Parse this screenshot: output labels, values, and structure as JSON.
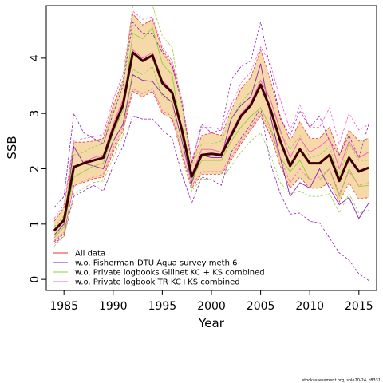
{
  "chart_data": {
    "type": "line",
    "xlabel": "Year",
    "ylabel": "SSB",
    "xlim": [
      1983.2,
      2016.8
    ],
    "ylim": [
      -0.2,
      4.95
    ],
    "x_ticks": [
      1985,
      1990,
      1995,
      2000,
      2005,
      2010,
      2015
    ],
    "y_ticks": [
      0,
      1,
      2,
      3,
      4
    ],
    "legend_position": "bottom-left",
    "x": [
      1984,
      1985,
      1986,
      1987,
      1988,
      1989,
      1990,
      1991,
      1992,
      1993,
      1994,
      1995,
      1996,
      1997,
      1998,
      1999,
      2000,
      2001,
      2002,
      2003,
      2004,
      2005,
      2006,
      2007,
      2008,
      2009,
      2010,
      2011,
      2012,
      2013,
      2014,
      2015,
      2016
    ],
    "main_estimate": {
      "values": [
        0.88,
        1.07,
        2.03,
        2.1,
        2.15,
        2.2,
        2.72,
        3.15,
        4.1,
        3.95,
        4.05,
        3.55,
        3.38,
        2.7,
        1.86,
        2.25,
        2.27,
        2.25,
        2.6,
        2.95,
        3.15,
        3.52,
        3.08,
        2.5,
        2.05,
        2.35,
        2.1,
        2.1,
        2.25,
        1.78,
        2.2,
        1.95,
        2.02
      ],
      "color": "#3d0000"
    },
    "confidence_band": {
      "lower": [
        0.68,
        0.82,
        1.7,
        1.75,
        1.82,
        1.85,
        2.3,
        2.68,
        3.4,
        3.3,
        3.4,
        3.0,
        2.9,
        2.25,
        1.65,
        1.9,
        1.9,
        1.9,
        2.15,
        2.45,
        2.7,
        2.95,
        2.6,
        2.05,
        1.65,
        1.85,
        1.65,
        1.65,
        1.75,
        1.4,
        1.75,
        1.45,
        1.48
      ],
      "upper": [
        1.05,
        1.3,
        2.48,
        2.48,
        2.5,
        2.55,
        3.15,
        3.6,
        4.8,
        4.6,
        4.7,
        4.15,
        3.9,
        3.2,
        2.1,
        2.6,
        2.65,
        2.6,
        3.05,
        3.45,
        3.65,
        4.15,
        3.6,
        2.95,
        2.5,
        2.85,
        2.55,
        2.55,
        2.75,
        2.25,
        2.7,
        2.5,
        2.55
      ],
      "fill_color": "#f5d9a8",
      "line_color": "#e0525b"
    },
    "series": [
      {
        "name": "All data",
        "color": "#e8323c",
        "values": [
          0.88,
          1.07,
          2.03,
          2.1,
          2.15,
          2.2,
          2.72,
          3.15,
          4.1,
          3.95,
          4.05,
          3.55,
          3.38,
          2.7,
          1.86,
          2.25,
          2.27,
          2.25,
          2.6,
          2.95,
          3.15,
          3.52,
          3.08,
          2.5,
          2.05,
          2.35,
          2.1,
          2.1,
          2.25,
          1.78,
          2.2,
          1.95,
          2.02
        ],
        "lower": [
          0.68,
          0.82,
          1.7,
          1.75,
          1.82,
          1.85,
          2.3,
          2.68,
          3.4,
          3.3,
          3.4,
          3.0,
          2.9,
          2.25,
          1.65,
          1.9,
          1.9,
          1.9,
          2.15,
          2.45,
          2.7,
          2.95,
          2.6,
          2.05,
          1.65,
          1.85,
          1.65,
          1.65,
          1.75,
          1.4,
          1.75,
          1.45,
          1.48
        ],
        "upper": [
          1.05,
          1.3,
          2.48,
          2.48,
          2.5,
          2.55,
          3.15,
          3.6,
          4.8,
          4.6,
          4.7,
          4.15,
          3.9,
          3.2,
          2.1,
          2.6,
          2.65,
          2.6,
          3.05,
          3.45,
          3.65,
          4.15,
          3.6,
          2.95,
          2.5,
          2.85,
          2.55,
          2.55,
          2.75,
          2.25,
          2.7,
          2.5,
          2.55
        ]
      },
      {
        "name": "w.o. Fisherman-DTU Aqua survey meth 6",
        "color": "#8a1fb5",
        "values": [
          0.8,
          1.0,
          2.4,
          2.1,
          2.05,
          2.0,
          2.5,
          2.8,
          3.7,
          3.6,
          3.58,
          3.35,
          3.2,
          2.5,
          1.75,
          2.25,
          2.2,
          2.2,
          2.9,
          3.15,
          3.3,
          3.9,
          2.95,
          2.2,
          1.5,
          1.75,
          1.65,
          2.0,
          1.65,
          1.35,
          1.48,
          1.1,
          1.38
        ],
        "lower": [
          0.65,
          0.78,
          1.5,
          1.6,
          1.7,
          1.6,
          2.05,
          2.4,
          2.95,
          2.9,
          2.9,
          2.7,
          2.55,
          1.9,
          1.38,
          1.85,
          1.8,
          1.7,
          2.3,
          2.55,
          2.8,
          3.1,
          2.1,
          1.55,
          1.18,
          1.2,
          1.05,
          1.02,
          0.75,
          0.48,
          0.35,
          0.1,
          -0.02
        ],
        "upper": [
          1.3,
          1.5,
          3.0,
          2.65,
          2.55,
          2.45,
          3.0,
          3.5,
          4.65,
          4.45,
          4.45,
          4.1,
          3.85,
          3.2,
          2.1,
          2.8,
          2.65,
          2.7,
          3.6,
          3.85,
          3.95,
          4.65,
          3.8,
          2.9,
          2.6,
          3.05,
          2.75,
          2.95,
          2.5,
          2.25,
          2.6,
          2.2,
          2.8
        ]
      },
      {
        "name": "w.o. Private logbooks Gillnet KC + KS combined",
        "color": "#8fce3b",
        "values": [
          0.75,
          0.95,
          1.85,
          1.95,
          2.05,
          2.1,
          2.65,
          3.05,
          4.45,
          4.35,
          4.55,
          3.9,
          3.7,
          2.6,
          1.8,
          2.15,
          2.15,
          2.15,
          2.5,
          2.75,
          2.95,
          3.1,
          2.75,
          2.2,
          1.95,
          2.15,
          1.8,
          1.8,
          2.0,
          1.5,
          2.0,
          1.68,
          1.7
        ],
        "lower": [
          0.6,
          0.78,
          1.55,
          1.65,
          1.75,
          1.78,
          2.2,
          2.6,
          3.8,
          3.7,
          3.85,
          3.3,
          3.2,
          2.2,
          1.6,
          1.82,
          1.8,
          1.8,
          2.05,
          2.3,
          2.5,
          2.65,
          2.25,
          1.75,
          1.55,
          1.6,
          1.5,
          1.5,
          1.55,
          1.2,
          1.55,
          1.2,
          1.25
        ],
        "upper": [
          0.95,
          1.15,
          2.25,
          2.3,
          2.4,
          2.45,
          3.1,
          3.55,
          5.05,
          4.95,
          5.1,
          4.4,
          4.2,
          3.1,
          2.05,
          2.45,
          2.45,
          2.5,
          2.9,
          3.2,
          3.4,
          3.6,
          3.25,
          2.65,
          2.35,
          2.6,
          2.2,
          2.25,
          2.4,
          1.85,
          2.45,
          2.15,
          2.15
        ]
      },
      {
        "name": "w.o. Private logbook TR KC+KS combined",
        "color": "#ff55c8",
        "values": [
          0.9,
          1.1,
          2.0,
          2.12,
          2.2,
          2.25,
          2.8,
          3.25,
          4.15,
          4.0,
          4.1,
          3.6,
          3.4,
          2.75,
          1.9,
          2.35,
          2.35,
          2.3,
          2.65,
          3.0,
          3.2,
          3.6,
          3.25,
          2.7,
          2.2,
          2.55,
          2.3,
          2.4,
          2.55,
          2.0,
          2.5,
          2.2,
          2.3
        ],
        "lower": [
          0.7,
          0.85,
          1.68,
          1.78,
          1.85,
          1.9,
          2.38,
          2.75,
          3.45,
          3.35,
          3.45,
          3.05,
          2.95,
          2.3,
          1.7,
          1.95,
          1.95,
          1.95,
          2.2,
          2.5,
          2.75,
          3.0,
          2.7,
          2.2,
          1.75,
          2.0,
          1.8,
          1.85,
          2.0,
          1.55,
          1.95,
          1.7,
          1.75
        ],
        "upper": [
          1.1,
          1.35,
          2.5,
          2.55,
          2.58,
          2.62,
          3.25,
          3.7,
          4.85,
          4.7,
          4.75,
          4.2,
          3.95,
          3.25,
          2.15,
          2.75,
          2.75,
          2.7,
          3.15,
          3.55,
          3.75,
          4.2,
          3.9,
          3.25,
          2.7,
          3.15,
          2.75,
          2.75,
          3.1,
          2.45,
          3.0,
          2.7,
          2.8
        ]
      }
    ]
  },
  "footnote": "stockassessment.org, sole20-24, r8331"
}
